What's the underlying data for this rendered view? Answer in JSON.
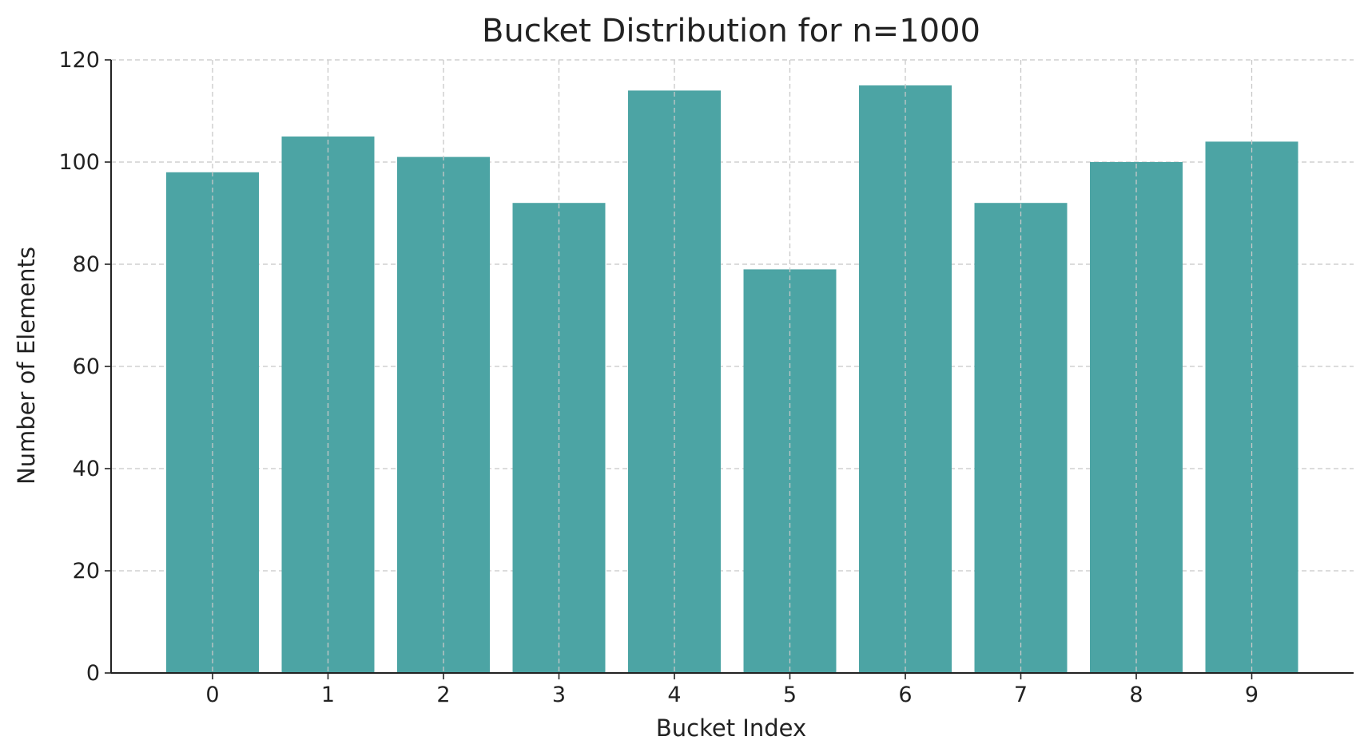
{
  "chart_data": {
    "type": "bar",
    "title": "Bucket Distribution for n=1000",
    "xlabel": "Bucket Index",
    "ylabel": "Number of Elements",
    "categories": [
      "0",
      "1",
      "2",
      "3",
      "4",
      "5",
      "6",
      "7",
      "8",
      "9"
    ],
    "values": [
      98,
      105,
      101,
      92,
      114,
      79,
      115,
      92,
      100,
      104
    ],
    "ylim": [
      0,
      120
    ],
    "yticks": [
      0,
      20,
      40,
      60,
      80,
      100,
      120
    ],
    "grid": true,
    "bar_color": "#4ca4a4"
  }
}
